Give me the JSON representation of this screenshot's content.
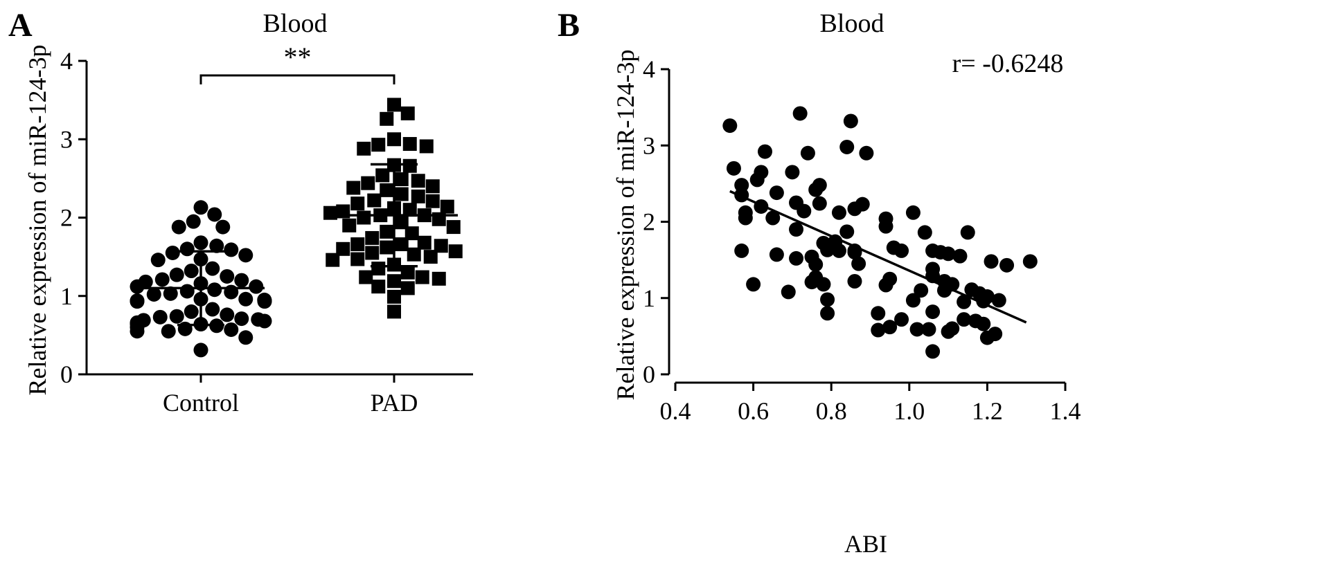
{
  "colors": {
    "marker": "#000000",
    "axis": "#000000",
    "background": "#ffffff"
  },
  "chart_data": [
    {
      "panel": "A",
      "type": "scatter",
      "title": "Blood",
      "ylabel": "Relative expression of miR-124-3p",
      "xlabel": "",
      "categories": [
        "Control",
        "PAD"
      ],
      "ylim": [
        0,
        4
      ],
      "yticks": [
        0,
        1,
        2,
        3,
        4
      ],
      "significance": {
        "label": "**",
        "between": [
          "Control",
          "PAD"
        ]
      },
      "grid": false,
      "series": [
        {
          "category": "Control",
          "marker": "circle",
          "mean": 1.1,
          "sd_upper": 1.57,
          "sd_lower": 0.63,
          "values": [
            2.13,
            2.04,
            1.95,
            1.88,
            1.88,
            1.68,
            1.64,
            1.59,
            1.6,
            1.55,
            1.52,
            1.47,
            1.46,
            1.35,
            1.32,
            1.27,
            1.25,
            1.21,
            1.2,
            1.18,
            1.16,
            1.12,
            1.12,
            1.08,
            1.06,
            1.05,
            1.03,
            1.02,
            0.96,
            0.96,
            0.95,
            0.94,
            0.94,
            0.93,
            0.93,
            0.83,
            0.8,
            0.76,
            0.74,
            0.73,
            0.71,
            0.7,
            0.69,
            0.68,
            0.66,
            0.64,
            0.64,
            0.62,
            0.6,
            0.58,
            0.57,
            0.55,
            0.55,
            0.47,
            0.31
          ]
        },
        {
          "category": "PAD",
          "marker": "square",
          "mean": 2.03,
          "sd_upper": 2.68,
          "sd_lower": 1.38,
          "values": [
            3.44,
            3.33,
            3.26,
            3.0,
            2.94,
            2.93,
            2.91,
            2.88,
            2.67,
            2.66,
            2.54,
            2.49,
            2.47,
            2.44,
            2.4,
            2.38,
            2.35,
            2.3,
            2.27,
            2.22,
            2.21,
            2.18,
            2.14,
            2.12,
            2.1,
            2.08,
            2.06,
            2.03,
            2.03,
            2.0,
            1.98,
            1.94,
            1.9,
            1.88,
            1.82,
            1.8,
            1.74,
            1.68,
            1.66,
            1.66,
            1.64,
            1.62,
            1.6,
            1.57,
            1.55,
            1.53,
            1.5,
            1.47,
            1.46,
            1.4,
            1.35,
            1.3,
            1.24,
            1.24,
            1.22,
            1.19,
            1.12,
            1.1,
            0.99,
            0.8
          ]
        }
      ]
    },
    {
      "panel": "B",
      "type": "scatter",
      "title": "Blood",
      "xlabel": "ABI",
      "ylabel": "Relative expression of miR-124-3p",
      "xlim": [
        0.4,
        1.4
      ],
      "ylim": [
        0,
        4
      ],
      "xticks": [
        0.4,
        0.6,
        0.8,
        1.0,
        1.2,
        1.4
      ],
      "xtick_labels": [
        "0.4",
        "0.6",
        "0.8",
        "1.0",
        "1.2",
        "1.4"
      ],
      "yticks": [
        0,
        1,
        2,
        3,
        4
      ],
      "annotation": "r= -0.6248",
      "grid": false,
      "trendline": {
        "x": [
          0.54,
          1.3
        ],
        "y": [
          2.4,
          0.68
        ]
      },
      "points": [
        [
          0.54,
          3.26
        ],
        [
          0.55,
          2.7
        ],
        [
          0.57,
          2.48
        ],
        [
          0.57,
          2.35
        ],
        [
          0.58,
          2.05
        ],
        [
          0.58,
          2.12
        ],
        [
          0.57,
          1.62
        ],
        [
          0.6,
          1.18
        ],
        [
          0.61,
          2.55
        ],
        [
          0.62,
          2.65
        ],
        [
          0.62,
          2.2
        ],
        [
          0.63,
          2.92
        ],
        [
          0.65,
          2.05
        ],
        [
          0.66,
          2.38
        ],
        [
          0.66,
          1.57
        ],
        [
          0.69,
          1.08
        ],
        [
          0.7,
          2.65
        ],
        [
          0.71,
          1.9
        ],
        [
          0.71,
          1.52
        ],
        [
          0.72,
          3.42
        ],
        [
          0.71,
          2.25
        ],
        [
          0.73,
          2.14
        ],
        [
          0.74,
          2.9
        ],
        [
          0.76,
          2.42
        ],
        [
          0.77,
          2.48
        ],
        [
          0.77,
          2.24
        ],
        [
          0.75,
          1.54
        ],
        [
          0.76,
          1.44
        ],
        [
          0.75,
          1.21
        ],
        [
          0.76,
          1.27
        ],
        [
          0.78,
          1.72
        ],
        [
          0.79,
          1.63
        ],
        [
          0.78,
          1.18
        ],
        [
          0.79,
          0.98
        ],
        [
          0.79,
          0.8
        ],
        [
          0.81,
          1.74
        ],
        [
          0.82,
          1.62
        ],
        [
          0.82,
          2.12
        ],
        [
          0.84,
          2.98
        ],
        [
          0.84,
          1.87
        ],
        [
          0.85,
          3.32
        ],
        [
          0.86,
          2.17
        ],
        [
          0.88,
          2.23
        ],
        [
          0.86,
          1.62
        ],
        [
          0.86,
          1.6
        ],
        [
          0.87,
          1.45
        ],
        [
          0.86,
          1.22
        ],
        [
          0.89,
          2.9
        ],
        [
          0.92,
          0.8
        ],
        [
          0.92,
          0.58
        ],
        [
          0.94,
          2.04
        ],
        [
          0.94,
          1.94
        ],
        [
          0.94,
          1.17
        ],
        [
          0.95,
          1.25
        ],
        [
          0.95,
          0.62
        ],
        [
          0.96,
          1.66
        ],
        [
          0.98,
          1.62
        ],
        [
          0.98,
          0.72
        ],
        [
          1.01,
          2.12
        ],
        [
          1.01,
          0.97
        ],
        [
          1.02,
          0.59
        ],
        [
          1.03,
          1.1
        ],
        [
          1.04,
          1.86
        ],
        [
          1.05,
          0.59
        ],
        [
          1.06,
          1.62
        ],
        [
          1.06,
          1.38
        ],
        [
          1.06,
          1.29
        ],
        [
          1.06,
          0.82
        ],
        [
          1.06,
          0.3
        ],
        [
          1.08,
          1.6
        ],
        [
          1.09,
          1.22
        ],
        [
          1.09,
          1.1
        ],
        [
          1.1,
          1.58
        ],
        [
          1.1,
          0.56
        ],
        [
          1.11,
          1.18
        ],
        [
          1.11,
          0.6
        ],
        [
          1.13,
          1.55
        ],
        [
          1.14,
          0.95
        ],
        [
          1.14,
          0.72
        ],
        [
          1.15,
          1.86
        ],
        [
          1.16,
          1.11
        ],
        [
          1.17,
          0.7
        ],
        [
          1.18,
          1.06
        ],
        [
          1.19,
          0.96
        ],
        [
          1.19,
          0.66
        ],
        [
          1.2,
          1.02
        ],
        [
          1.2,
          0.48
        ],
        [
          1.21,
          1.48
        ],
        [
          1.22,
          0.53
        ],
        [
          1.23,
          0.97
        ],
        [
          1.25,
          1.43
        ],
        [
          1.31,
          1.48
        ]
      ]
    }
  ]
}
